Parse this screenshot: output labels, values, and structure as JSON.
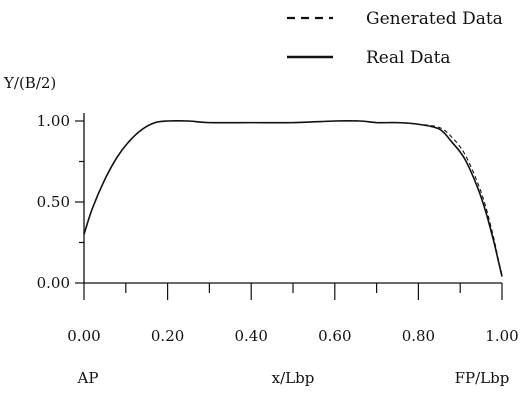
{
  "chart_data": {
    "type": "line",
    "title": "",
    "ylabel": "Y/(B/2)",
    "xlabel": "x/Lbp",
    "x_end_labels": {
      "left": "AP",
      "right": "FP/Lbp"
    },
    "xlim": [
      0,
      1
    ],
    "ylim": [
      0,
      1
    ],
    "x_ticks": [
      0.0,
      0.2,
      0.4,
      0.6,
      0.8,
      1.0
    ],
    "x_tick_labels": [
      "0.00",
      "0.20",
      "0.40",
      "0.60",
      "0.80",
      "1.00"
    ],
    "y_ticks": [
      0.0,
      0.5,
      1.0
    ],
    "y_tick_labels": [
      "0.00",
      "0.50",
      "1.00"
    ],
    "grid": false,
    "legend_position": "top-right",
    "series": [
      {
        "name": "Generated Data",
        "style": "dashed",
        "x": [
          0.0,
          0.02,
          0.05,
          0.08,
          0.11,
          0.14,
          0.17,
          0.2,
          0.25,
          0.3,
          0.4,
          0.5,
          0.6,
          0.66,
          0.7,
          0.75,
          0.8,
          0.85,
          0.88,
          0.91,
          0.94,
          0.96,
          0.98,
          0.99,
          1.0
        ],
        "values": [
          0.3,
          0.46,
          0.64,
          0.78,
          0.88,
          0.95,
          0.99,
          1.0,
          1.0,
          0.99,
          0.99,
          0.99,
          1.0,
          1.0,
          0.99,
          0.99,
          0.98,
          0.96,
          0.9,
          0.8,
          0.63,
          0.48,
          0.28,
          0.16,
          0.05
        ]
      },
      {
        "name": "Real Data",
        "style": "solid",
        "x": [
          0.0,
          0.02,
          0.05,
          0.08,
          0.11,
          0.14,
          0.17,
          0.2,
          0.25,
          0.3,
          0.4,
          0.5,
          0.6,
          0.66,
          0.7,
          0.75,
          0.8,
          0.85,
          0.88,
          0.91,
          0.94,
          0.96,
          0.98,
          0.99,
          1.0
        ],
        "values": [
          0.3,
          0.46,
          0.64,
          0.78,
          0.88,
          0.95,
          0.99,
          1.0,
          1.0,
          0.99,
          0.99,
          0.99,
          1.0,
          1.0,
          0.99,
          0.99,
          0.98,
          0.95,
          0.87,
          0.77,
          0.6,
          0.45,
          0.26,
          0.15,
          0.04
        ]
      }
    ]
  }
}
